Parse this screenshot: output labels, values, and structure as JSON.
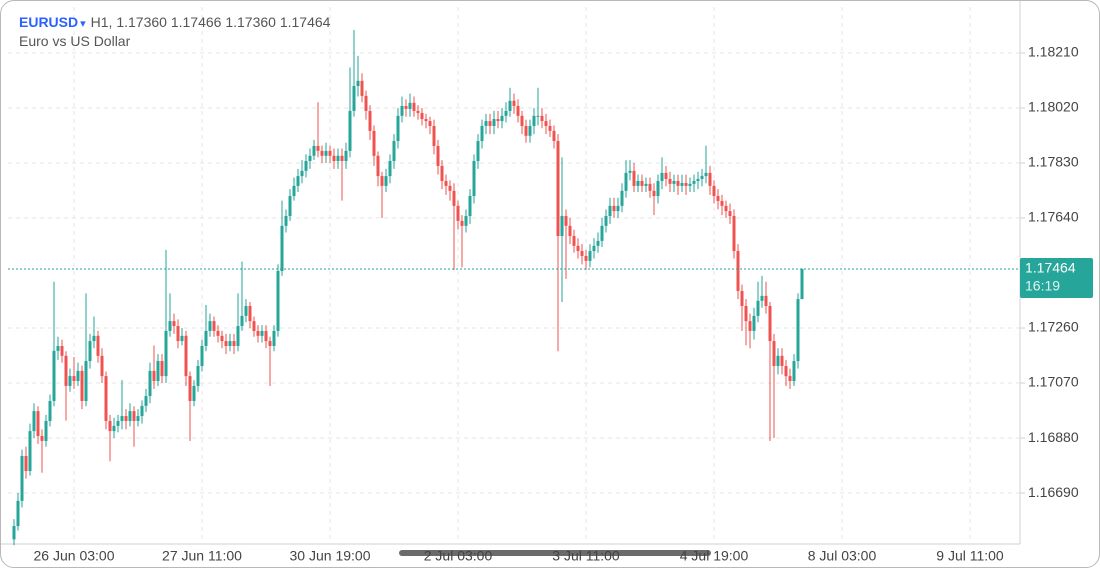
{
  "chart_data": {
    "type": "candlestick",
    "symbol": "EURUSD",
    "dropdown": "▾",
    "timeframe": "H1,",
    "ohlc": "1.17360 1.17466 1.17360 1.17464",
    "description": "Euro vs US Dollar",
    "up_color": "#26a69a",
    "down_color": "#ef5350",
    "grid": true,
    "xlim": [
      -1.5,
      251.5
    ],
    "ylim": [
      1.16514,
      1.18369
    ],
    "xticks": [
      {
        "value": 15,
        "label": "26 Jun 03:00"
      },
      {
        "value": 47,
        "label": "27 Jun 11:00"
      },
      {
        "value": 79,
        "label": "30 Jun 19:00"
      },
      {
        "value": 111,
        "label": "2 Jul 03:00"
      },
      {
        "value": 143,
        "label": "3 Jul 11:00"
      },
      {
        "value": 175,
        "label": "4 Jul 19:00"
      },
      {
        "value": 207,
        "label": "8 Jul 03:00"
      },
      {
        "value": 239,
        "label": "9 Jul 11:00"
      }
    ],
    "yticks": [
      {
        "value": 1.1821,
        "label": "1.18210"
      },
      {
        "value": 1.1802,
        "label": "1.18020"
      },
      {
        "value": 1.1783,
        "label": "1.17830"
      },
      {
        "value": 1.1764,
        "label": "1.17640"
      },
      {
        "value": 1.1726,
        "label": "1.17260"
      },
      {
        "value": 1.1707,
        "label": "1.17070"
      },
      {
        "value": 1.1688,
        "label": "1.16880"
      },
      {
        "value": 1.1669,
        "label": "1.16690"
      }
    ],
    "last_price": {
      "value": 1.17464,
      "label": "1.17464"
    },
    "countdown": "16:19",
    "open": [
      1.1653,
      1.16576,
      1.16663,
      1.16818,
      1.16766,
      1.16904,
      1.16973,
      1.16887,
      1.1687,
      1.16939,
      1.17008,
      1.17181,
      1.17198,
      1.17164,
      1.1706,
      1.17094,
      1.17077,
      1.17112,
      1.17008,
      1.17146,
      1.17215,
      1.17233,
      1.17164,
      1.17094,
      1.16939,
      1.16904,
      1.16922,
      1.16939,
      1.16956,
      1.16939,
      1.16973,
      1.16939,
      1.16956,
      1.16991,
      1.17025,
      1.17112,
      1.17077,
      1.17146,
      1.17094,
      1.1725,
      1.17284,
      1.17267,
      1.17215,
      1.17233,
      1.17094,
      1.17008,
      1.1706,
      1.17129,
      1.17198,
      1.1725,
      1.17284,
      1.1725,
      1.17233,
      1.17215,
      1.17198,
      1.17215,
      1.17198,
      1.17267,
      1.17302,
      1.17336,
      1.17284,
      1.1725,
      1.17233,
      1.1725,
      1.17215,
      1.17198,
      1.1725,
      1.17457,
      1.17613,
      1.17647,
      1.17716,
      1.17751,
      1.17785,
      1.17803,
      1.17837,
      1.17855,
      1.17889,
      1.17872,
      1.17855,
      1.17872,
      1.17855,
      1.17837,
      1.17855,
      1.17837,
      1.17872,
      1.1801,
      1.18096,
      1.18114,
      1.18062,
      1.1801,
      1.17941,
      1.17855,
      1.17785,
      1.17751,
      1.17785,
      1.17837,
      1.17906,
      1.17993,
      1.18027,
      1.18017,
      1.18038,
      1.1801,
      1.18003,
      1.17982,
      1.17975,
      1.17958,
      1.17889,
      1.1782,
      1.17768,
      1.17751,
      1.17734,
      1.17682,
      1.1763,
      1.17613,
      1.17647,
      1.17716,
      1.17837,
      1.17906,
      1.17958,
      1.17975,
      1.17958,
      1.17982,
      1.17975,
      1.17993,
      1.1801,
      1.18045,
      1.18027,
      1.17993,
      1.17958,
      1.17924,
      1.17958,
      1.17993,
      1.17993,
      1.17975,
      1.17958,
      1.17941,
      1.17906,
      1.17578,
      1.17647,
      1.17613,
      1.17578,
      1.17544,
      1.17526,
      1.17509,
      1.17492,
      1.17526,
      1.17544,
      1.17561,
      1.17613,
      1.17647,
      1.17682,
      1.17664,
      1.17682,
      1.17734,
      1.17796,
      1.17803,
      1.17751,
      1.17768,
      1.17751,
      1.17758,
      1.17734,
      1.17716,
      1.17768,
      1.17796,
      1.17775,
      1.17758,
      1.17768,
      1.17751,
      1.17761,
      1.17751,
      1.17758,
      1.17768,
      1.17775,
      1.17785,
      1.17796,
      1.17751,
      1.17716,
      1.17699,
      1.17682,
      1.17664,
      1.17647,
      1.17526,
      1.17388,
      1.17336,
      1.17284,
      1.1725,
      1.17302,
      1.17354,
      1.17371,
      1.17336,
      1.17215,
      1.17129,
      1.17164,
      1.17129,
      1.17094,
      1.17077,
      1.17146,
      1.1736
    ],
    "high": [
      1.166,
      1.1669,
      1.1684,
      1.1685,
      1.1693,
      1.17,
      1.1699,
      1.1691,
      1.1696,
      1.1703,
      1.1742,
      1.1723,
      1.1722,
      1.1718,
      1.1712,
      1.1716,
      1.1714,
      1.1713,
      1.1738,
      1.1724,
      1.173,
      1.1725,
      1.1719,
      1.1711,
      1.1696,
      1.1695,
      1.1696,
      1.1708,
      1.1698,
      1.17,
      1.1699,
      1.1698,
      1.1701,
      1.1705,
      1.1714,
      1.172,
      1.1717,
      1.1717,
      1.1753,
      1.1738,
      1.1731,
      1.1729,
      1.1726,
      1.1725,
      1.1711,
      1.1708,
      1.1715,
      1.1722,
      1.1734,
      1.1731,
      1.173,
      1.1727,
      1.1725,
      1.1724,
      1.1724,
      1.1724,
      1.1738,
      1.1749,
      1.1736,
      1.1735,
      1.173,
      1.1727,
      1.1727,
      1.1727,
      1.1723,
      1.1727,
      1.1748,
      1.177,
      1.1767,
      1.1774,
      1.1778,
      1.1781,
      1.1784,
      1.1786,
      1.1788,
      1.1791,
      1.1804,
      1.1789,
      1.179,
      1.1789,
      1.1788,
      1.1788,
      1.1788,
      1.179,
      1.1816,
      1.1829,
      1.182,
      1.1814,
      1.1808,
      1.1803,
      1.1796,
      1.1787,
      1.178,
      1.1781,
      1.1786,
      1.1793,
      1.1802,
      1.1806,
      1.1805,
      1.1807,
      1.1806,
      1.1803,
      1.1802,
      1.18,
      1.1799,
      1.1798,
      1.1791,
      1.1784,
      1.1779,
      1.1777,
      1.1776,
      1.177,
      1.1765,
      1.1767,
      1.1774,
      1.1786,
      1.1793,
      1.1798,
      1.18,
      1.18,
      1.1801,
      1.1801,
      1.1802,
      1.1804,
      1.1809,
      1.1807,
      1.1805,
      1.1801,
      1.1798,
      1.1798,
      1.1802,
      1.1809,
      1.1802,
      1.18,
      1.1798,
      1.1796,
      1.1793,
      1.1785,
      1.1767,
      1.1764,
      1.176,
      1.1757,
      1.1755,
      1.1753,
      1.1755,
      1.1757,
      1.1759,
      1.1764,
      1.1767,
      1.1771,
      1.1771,
      1.1771,
      1.1776,
      1.1784,
      1.1784,
      1.1783,
      1.1779,
      1.1779,
      1.1778,
      1.1778,
      1.1776,
      1.1779,
      1.1785,
      1.1782,
      1.178,
      1.1779,
      1.1779,
      1.1779,
      1.1779,
      1.1778,
      1.1779,
      1.178,
      1.1781,
      1.1789,
      1.1782,
      1.1777,
      1.1774,
      1.1772,
      1.177,
      1.1769,
      1.1767,
      1.1755,
      1.1741,
      1.1736,
      1.1731,
      1.1733,
      1.1742,
      1.1744,
      1.1742,
      1.1735,
      1.1724,
      1.1719,
      1.1719,
      1.1715,
      1.1712,
      1.1717,
      1.1738,
      1.17466
    ],
    "low": [
      1.1651,
      1.1656,
      1.1664,
      1.1674,
      1.1675,
      1.1688,
      1.1686,
      1.1676,
      1.1685,
      1.1692,
      1.1699,
      1.1715,
      1.1714,
      1.1694,
      1.1704,
      1.1705,
      1.1706,
      1.1698,
      1.1699,
      1.1712,
      1.1719,
      1.1714,
      1.1707,
      1.1691,
      1.168,
      1.1688,
      1.169,
      1.1691,
      1.1691,
      1.1692,
      1.1685,
      1.1692,
      1.1693,
      1.1697,
      1.17,
      1.1705,
      1.1706,
      1.1707,
      1.1707,
      1.1723,
      1.1724,
      1.1719,
      1.172,
      1.1706,
      1.1687,
      1.1699,
      1.1704,
      1.1711,
      1.1718,
      1.1723,
      1.1723,
      1.1721,
      1.1719,
      1.1717,
      1.1718,
      1.1717,
      1.1718,
      1.1725,
      1.1728,
      1.1726,
      1.1723,
      1.1721,
      1.1721,
      1.1719,
      1.1706,
      1.1718,
      1.1723,
      1.1744,
      1.1759,
      1.1763,
      1.177,
      1.1773,
      1.1776,
      1.1778,
      1.1781,
      1.1784,
      1.1785,
      1.1783,
      1.1783,
      1.1783,
      1.1781,
      1.1781,
      1.177,
      1.1781,
      1.1785,
      1.1799,
      1.1806,
      1.1804,
      1.1798,
      1.1791,
      1.1782,
      1.1775,
      1.1764,
      1.1773,
      1.1776,
      1.1781,
      1.1788,
      1.1797,
      1.1799,
      1.1799,
      1.1799,
      1.1798,
      1.1796,
      1.1795,
      1.1793,
      1.1786,
      1.1779,
      1.1774,
      1.1772,
      1.177,
      1.1746,
      1.176,
      1.1747,
      1.1759,
      1.1762,
      1.1769,
      1.1781,
      1.1788,
      1.1793,
      1.1793,
      1.1793,
      1.1795,
      1.1795,
      1.1797,
      1.1799,
      1.18,
      1.1797,
      1.1793,
      1.179,
      1.179,
      1.1793,
      1.1796,
      1.1795,
      1.1793,
      1.1792,
      1.1788,
      1.1718,
      1.1735,
      1.1743,
      1.1755,
      1.1752,
      1.175,
      1.1748,
      1.1746,
      1.1747,
      1.175,
      1.1752,
      1.1754,
      1.1759,
      1.1762,
      1.1764,
      1.1764,
      1.1766,
      1.1771,
      1.1777,
      1.1773,
      1.1773,
      1.1773,
      1.1773,
      1.1771,
      1.1765,
      1.1769,
      1.1774,
      1.1775,
      1.1773,
      1.1773,
      1.1772,
      1.1773,
      1.1772,
      1.1773,
      1.1773,
      1.1774,
      1.1775,
      1.1776,
      1.1772,
      1.1769,
      1.1767,
      1.1765,
      1.1764,
      1.1762,
      1.175,
      1.1736,
      1.1725,
      1.172,
      1.1719,
      1.1722,
      1.1728,
      1.1733,
      1.1731,
      1.1687,
      1.1688,
      1.171,
      1.171,
      1.1706,
      1.1705,
      1.1706,
      1.1712,
      1.1736
    ],
    "close": [
      1.16576,
      1.16663,
      1.16818,
      1.16766,
      1.16904,
      1.16973,
      1.16887,
      1.1687,
      1.16939,
      1.17008,
      1.17181,
      1.17198,
      1.17164,
      1.1706,
      1.17094,
      1.17077,
      1.17112,
      1.17008,
      1.17146,
      1.17215,
      1.17233,
      1.17164,
      1.17094,
      1.16939,
      1.16904,
      1.16922,
      1.16939,
      1.16956,
      1.16939,
      1.16973,
      1.16939,
      1.16956,
      1.16991,
      1.17025,
      1.17112,
      1.17077,
      1.17146,
      1.17094,
      1.1725,
      1.17284,
      1.17267,
      1.17215,
      1.17233,
      1.17094,
      1.17008,
      1.1706,
      1.17129,
      1.17198,
      1.1725,
      1.17284,
      1.1725,
      1.17233,
      1.17215,
      1.17198,
      1.17215,
      1.17198,
      1.17267,
      1.17302,
      1.17336,
      1.17284,
      1.1725,
      1.17233,
      1.1725,
      1.17215,
      1.17198,
      1.1725,
      1.17457,
      1.17613,
      1.17647,
      1.17716,
      1.17751,
      1.17785,
      1.17803,
      1.17837,
      1.17855,
      1.17889,
      1.17872,
      1.17855,
      1.17872,
      1.17855,
      1.17837,
      1.17855,
      1.17837,
      1.17872,
      1.1801,
      1.18096,
      1.18114,
      1.18062,
      1.1801,
      1.17941,
      1.17855,
      1.17785,
      1.17751,
      1.17785,
      1.17837,
      1.17906,
      1.17993,
      1.18027,
      1.18017,
      1.18038,
      1.1801,
      1.18003,
      1.17982,
      1.17975,
      1.17958,
      1.17889,
      1.1782,
      1.17768,
      1.17751,
      1.17734,
      1.17682,
      1.1763,
      1.17613,
      1.17647,
      1.17716,
      1.17837,
      1.17906,
      1.17958,
      1.17975,
      1.17958,
      1.17982,
      1.17975,
      1.17993,
      1.1801,
      1.18045,
      1.18027,
      1.17993,
      1.17958,
      1.17924,
      1.17958,
      1.17993,
      1.17993,
      1.17975,
      1.17958,
      1.17941,
      1.17906,
      1.17578,
      1.17647,
      1.17613,
      1.17578,
      1.17544,
      1.17526,
      1.17509,
      1.17492,
      1.17526,
      1.17544,
      1.17561,
      1.17613,
      1.17647,
      1.17682,
      1.17664,
      1.17682,
      1.17734,
      1.17796,
      1.17803,
      1.17751,
      1.17768,
      1.17751,
      1.17758,
      1.17734,
      1.17716,
      1.17768,
      1.17796,
      1.17775,
      1.17758,
      1.17768,
      1.17751,
      1.17761,
      1.17751,
      1.17758,
      1.17768,
      1.17775,
      1.17785,
      1.17796,
      1.17751,
      1.17716,
      1.17699,
      1.17682,
      1.17664,
      1.17647,
      1.17526,
      1.17388,
      1.17336,
      1.17284,
      1.1725,
      1.17302,
      1.17354,
      1.17371,
      1.17336,
      1.17215,
      1.17129,
      1.17164,
      1.17129,
      1.17094,
      1.17077,
      1.17146,
      1.1736,
      1.17464
    ]
  }
}
